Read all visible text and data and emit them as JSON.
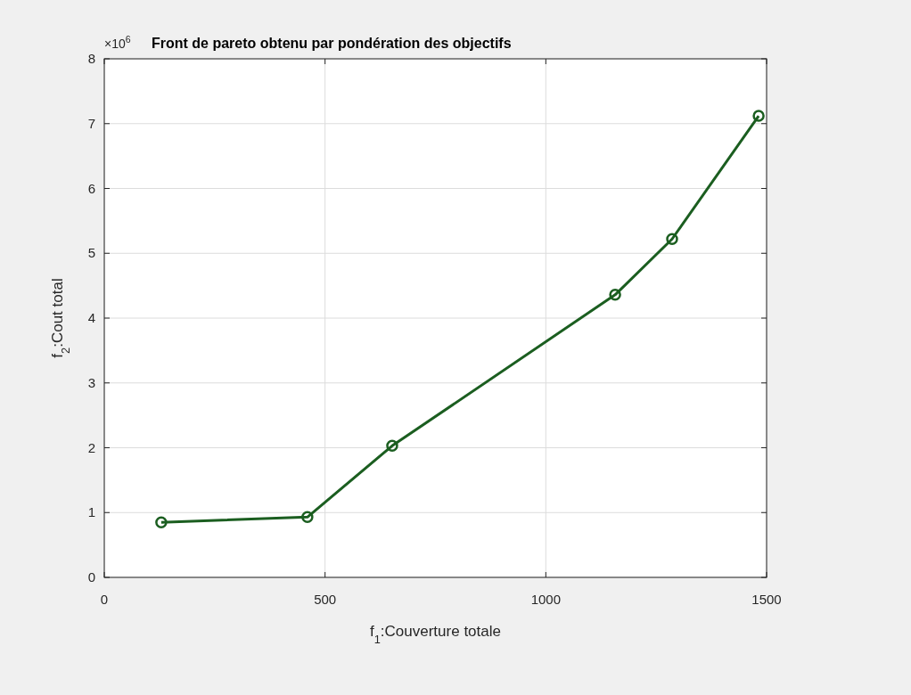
{
  "chart_data": {
    "type": "line",
    "title": "Front de pareto obtenu par pondération des objectifs",
    "xlabel": "f$_{1}$:Couverture totale",
    "ylabel": "f$_{2}$:Cout total",
    "annotations": [
      "×10$^{6}$"
    ],
    "x": [
      129,
      460,
      652,
      1157,
      1286,
      1482
    ],
    "series": [
      {
        "color": "#1b5e20",
        "values": [
          0.85,
          0.93,
          2.03,
          4.36,
          5.22,
          7.12
        ]
      }
    ],
    "xlim": [
      0,
      1500
    ],
    "xticks": [
      0,
      500,
      1000,
      1500
    ],
    "ylim": [
      0,
      8
    ],
    "yticks": [
      0,
      1,
      2,
      3,
      4,
      5,
      6,
      7,
      8
    ],
    "grid": true,
    "marker": "circle",
    "line_style": "solid"
  }
}
